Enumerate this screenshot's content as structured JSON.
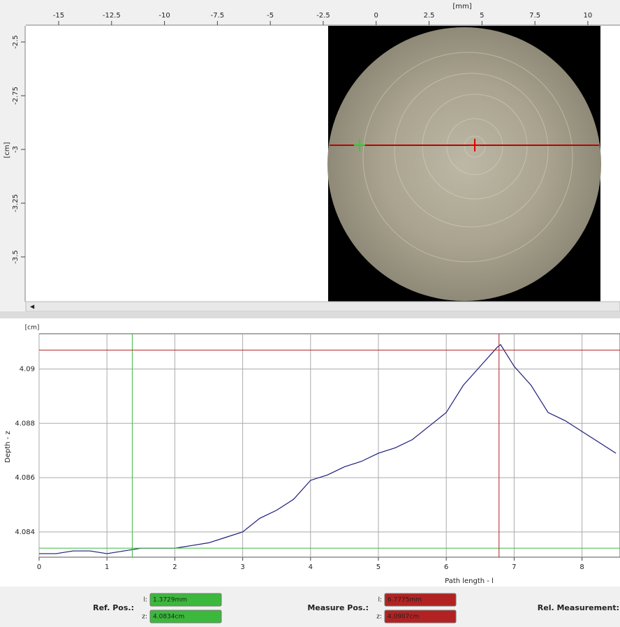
{
  "top_view": {
    "x_unit": "[mm]",
    "y_unit": "[cm]",
    "xlim": [
      -16.55,
      11.52
    ],
    "ylim": [
      -3.708,
      -2.425
    ],
    "xticks": [
      -15,
      -12.5,
      -10,
      -7.5,
      -5,
      -2.5,
      0,
      2.5,
      5,
      7.5,
      10
    ],
    "yticks": [
      -2.5,
      -2.75,
      -3,
      -3.25,
      -3.5
    ],
    "ref_marker": {
      "x": -0.79,
      "y": -2.98
    },
    "measure_marker": {
      "x": 4.66,
      "y": -2.98
    }
  },
  "chart_data": {
    "type": "line",
    "y_unit": "[cm]",
    "y_label": "Depth - z",
    "x_label": "Path length - l",
    "xlim": [
      0,
      8.56
    ],
    "ylim": [
      4.08307,
      4.0913
    ],
    "xticks": [
      0,
      1,
      2,
      3,
      4,
      5,
      6,
      7,
      8
    ],
    "yticks": [
      4.084,
      4.086,
      4.088,
      4.09
    ],
    "grid": true,
    "series": [
      {
        "color": "#1c1c7c",
        "x": [
          0,
          0.25,
          0.5,
          0.75,
          1,
          1.25,
          1.5,
          1.75,
          2,
          2.25,
          2.5,
          2.75,
          3,
          3.25,
          3.5,
          3.75,
          4,
          4.25,
          4.5,
          4.75,
          5,
          5.25,
          5.5,
          5.75,
          6,
          6.25,
          6.5,
          6.75,
          6.8,
          7,
          7.25,
          7.5,
          7.75,
          8,
          8.25,
          8.5
        ],
        "values": [
          4.0832,
          4.0832,
          4.0833,
          4.0833,
          4.0832,
          4.0833,
          4.0834,
          4.0834,
          4.0834,
          4.0835,
          4.0836,
          4.0838,
          4.084,
          4.0845,
          4.0848,
          4.0852,
          4.0859,
          4.0861,
          4.0864,
          4.0866,
          4.0869,
          4.0871,
          4.0874,
          4.0879,
          4.0884,
          4.0894,
          4.0901,
          4.0908,
          4.0909,
          4.0901,
          4.0894,
          4.0884,
          4.0881,
          4.0877,
          4.0873,
          4.0869
        ]
      }
    ],
    "ref_position": {
      "color": "#3cb83c",
      "l": {
        "value": 1.3729,
        "label": "1.3729mm"
      },
      "z": {
        "value": 4.0834,
        "label": "4.0834cm"
      }
    },
    "measure_position": {
      "color": "#b22222",
      "l": {
        "value": 6.7775,
        "label": "6.7775mm"
      },
      "z": {
        "value": 4.0907,
        "label": "4.0907cm"
      }
    }
  },
  "controls": {
    "ref_label": "Ref. Pos.:",
    "measure_label": "Measure Pos.:",
    "rel_label": "Rel. Measurement:",
    "l_label": "l:",
    "z_label": "z:"
  }
}
